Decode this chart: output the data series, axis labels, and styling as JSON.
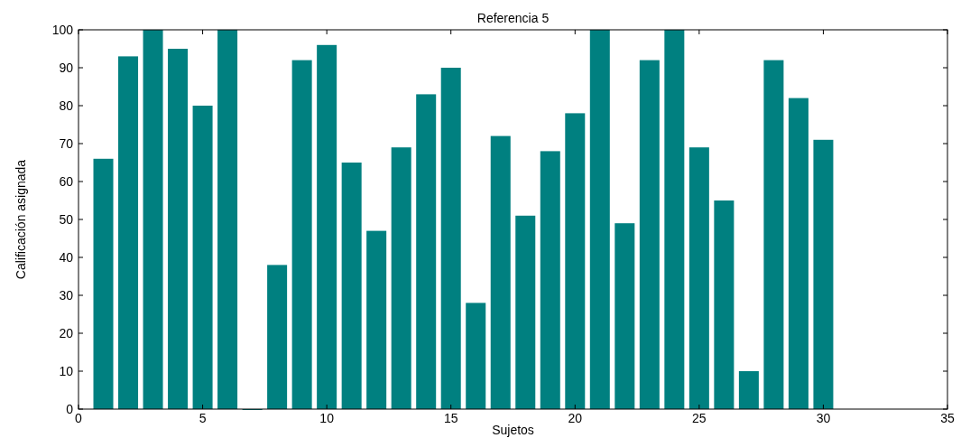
{
  "chart_data": {
    "type": "bar",
    "title": "Referencia 5",
    "xlabel": "Sujetos",
    "ylabel": "Calificación asignada",
    "x": [
      1,
      2,
      3,
      4,
      5,
      6,
      7,
      8,
      9,
      10,
      11,
      12,
      13,
      14,
      15,
      16,
      17,
      18,
      19,
      20,
      21,
      22,
      23,
      24,
      25,
      26,
      27,
      28,
      29,
      30
    ],
    "values": [
      66,
      93,
      100,
      95,
      80,
      100,
      0,
      38,
      92,
      96,
      65,
      47,
      69,
      83,
      90,
      28,
      72,
      51,
      68,
      78,
      100,
      49,
      92,
      100,
      69,
      55,
      10,
      92,
      82,
      71
    ],
    "color": "#008080",
    "xlim": [
      0,
      35
    ],
    "xticks": [
      0,
      5,
      10,
      15,
      20,
      25,
      30,
      35
    ],
    "ylim": [
      0,
      100
    ],
    "yticks": [
      0,
      10,
      20,
      30,
      40,
      50,
      60,
      70,
      80,
      90,
      100
    ],
    "grid": false
  }
}
